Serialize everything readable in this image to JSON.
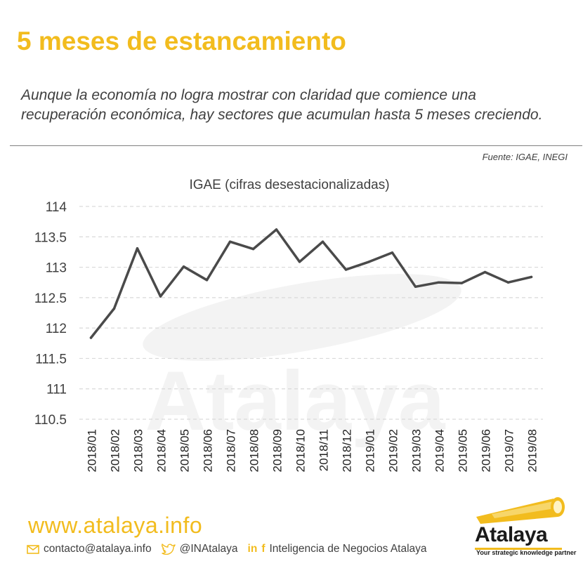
{
  "headline": "5 meses de estancamiento",
  "subtitle": "Aunque la economía no logra mostrar con claridad que comience una recuperación económica, hay sectores que acumulan hasta 5 meses creciendo.",
  "source": "Fuente: IGAE, INEGI",
  "watermark": "Atalaya",
  "colors": {
    "accent": "#f2bc1e",
    "line": "#4a4a4a",
    "grid": "#d9d9d9",
    "text": "#404040"
  },
  "chart_data": {
    "type": "line",
    "title": "IGAE  (cifras desestacionalizadas)",
    "categories": [
      "2018/01",
      "2018/02",
      "2018/03",
      "2018/04",
      "2018/05",
      "2018/06",
      "2018/07",
      "2018/08",
      "2018/09",
      "2018/10",
      "2018/11",
      "2018/12",
      "2019/01",
      "2019/02",
      "2019/03",
      "2019/04",
      "2019/05",
      "2019/06",
      "2019/07",
      "2019/08"
    ],
    "series": [
      {
        "values": [
          111.84,
          112.32,
          113.31,
          112.52,
          113.01,
          112.79,
          113.42,
          113.3,
          113.62,
          113.09,
          113.42,
          112.96,
          113.09,
          113.24,
          112.68,
          112.75,
          112.74,
          112.92,
          112.75,
          112.84
        ]
      }
    ],
    "yticks": [
      "114",
      "113.5",
      "113",
      "112.5",
      "112",
      "111.5",
      "111",
      "110.5"
    ],
    "ylim": [
      110.5,
      114
    ],
    "grid": true,
    "legend": "none"
  },
  "footer": {
    "url": "www.atalaya.info",
    "email": "contacto@atalaya.info",
    "twitter": "@INAtalaya",
    "social_name": "Inteligencia de Negocios Atalaya",
    "linkedin_icon": "in",
    "facebook_icon": "f",
    "brand": "Atalaya",
    "tagline": "Your strategic knowledge partner"
  }
}
